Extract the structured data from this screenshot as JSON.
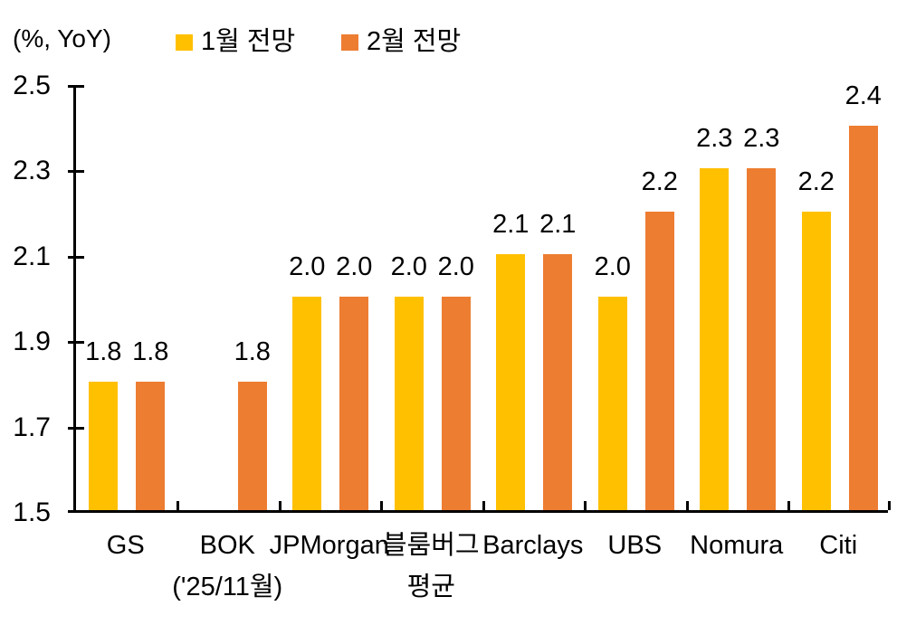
{
  "chart_data": {
    "type": "bar",
    "unit_label": "(%, YoY)",
    "categories": [
      [
        "GS"
      ],
      [
        "BOK",
        "('25/11월)"
      ],
      [
        "JPMorgan"
      ],
      [
        "블룸버그",
        "평균"
      ],
      [
        "Barclays"
      ],
      [
        "UBS"
      ],
      [
        "Nomura"
      ],
      [
        "Citi"
      ]
    ],
    "series": [
      {
        "name": "1월 전망",
        "color": "#FFC000",
        "values": [
          1.8,
          null,
          2.0,
          2.0,
          2.1,
          2.0,
          2.3,
          2.2
        ]
      },
      {
        "name": "2월 전망",
        "color": "#ED7D31",
        "values": [
          1.8,
          1.8,
          2.0,
          2.0,
          2.1,
          2.2,
          2.3,
          2.4
        ]
      }
    ],
    "ylim": [
      1.5,
      2.5
    ],
    "yticks": [
      2.5,
      2.3,
      2.1,
      1.9,
      1.7,
      1.5
    ],
    "value_label_decimals": 1,
    "axis_color": "#000000",
    "background_color": "#FFFFFF",
    "grid": false,
    "legend_position": "top"
  }
}
